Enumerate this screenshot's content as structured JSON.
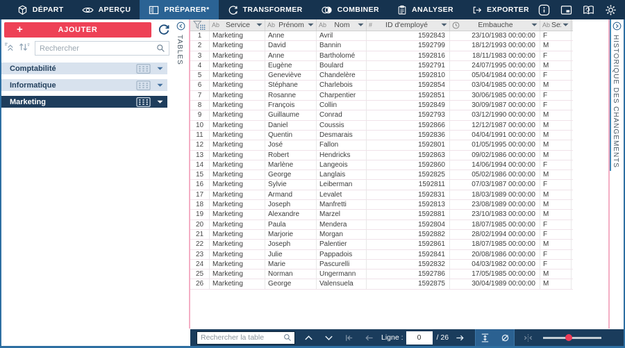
{
  "topbar": {
    "tabs": [
      {
        "label": "DÉPART",
        "icon": "cube-icon",
        "selected": false
      },
      {
        "label": "APERÇU",
        "icon": "eye-icon",
        "selected": false
      },
      {
        "label": "PRÉPARER*",
        "icon": "layout-icon",
        "selected": true
      },
      {
        "label": "TRANSFORMER",
        "icon": "transform-icon",
        "selected": false
      },
      {
        "label": "COMBINER",
        "icon": "combine-icon",
        "selected": false
      },
      {
        "label": "ANALYSER",
        "icon": "clipboard-icon",
        "selected": false
      },
      {
        "label": "EXPORTER",
        "icon": "export-icon",
        "selected": false
      }
    ],
    "right_icons": [
      "info-icon",
      "window-icon",
      "glossary-icon",
      "settings-icon"
    ]
  },
  "sidebar": {
    "add_button": "AJOUTER",
    "search_placeholder": "Rechercher",
    "items": [
      {
        "label": "Comptabilité",
        "selected": false
      },
      {
        "label": "Informatique",
        "selected": false
      },
      {
        "label": "Marketing",
        "selected": true
      }
    ]
  },
  "left_strip": {
    "label": "TABLES"
  },
  "right_strip": {
    "label": "HISTORIQUE DES CHANGEMENTS"
  },
  "table": {
    "columns": [
      {
        "type": "funnel",
        "label": ""
      },
      {
        "type": "Ab",
        "label": "Service"
      },
      {
        "type": "Ab",
        "label": "Prénom"
      },
      {
        "type": "Ab",
        "label": "Nom"
      },
      {
        "type": "#",
        "label": "ID d'employé"
      },
      {
        "type": "clock",
        "label": "Embauche"
      },
      {
        "type": "Ab",
        "label": "Sexe"
      }
    ],
    "rows": [
      [
        "1",
        "Marketing",
        "Anne",
        "Avril",
        "1592843",
        "23/10/1983 00:00:00",
        "F"
      ],
      [
        "2",
        "Marketing",
        "David",
        "Bannin",
        "1592799",
        "18/12/1993 00:00:00",
        "M"
      ],
      [
        "3",
        "Marketing",
        "Anne",
        "Bartholomé",
        "1592816",
        "18/11/1983 00:00:00",
        "F"
      ],
      [
        "4",
        "Marketing",
        "Eugène",
        "Boulard",
        "1592791",
        "24/07/1995 00:00:00",
        "M"
      ],
      [
        "5",
        "Marketing",
        "Geneviève",
        "Chandelère",
        "1592810",
        "05/04/1984 00:00:00",
        "F"
      ],
      [
        "6",
        "Marketing",
        "Stéphane",
        "Charlebois",
        "1592854",
        "03/04/1985 00:00:00",
        "M"
      ],
      [
        "7",
        "Marketing",
        "Rosanne",
        "Charpentier",
        "1592851",
        "30/06/1985 00:00:00",
        "F"
      ],
      [
        "8",
        "Marketing",
        "François",
        "Collin",
        "1592849",
        "30/09/1987 00:00:00",
        "F"
      ],
      [
        "9",
        "Marketing",
        "Guillaume",
        "Conrad",
        "1592793",
        "03/12/1990 00:00:00",
        "M"
      ],
      [
        "10",
        "Marketing",
        "Daniel",
        "Coussis",
        "1592866",
        "12/12/1987 00:00:00",
        "M"
      ],
      [
        "11",
        "Marketing",
        "Quentin",
        "Desmarais",
        "1592836",
        "04/04/1991 00:00:00",
        "M"
      ],
      [
        "12",
        "Marketing",
        "José",
        "Fallon",
        "1592801",
        "01/05/1995 00:00:00",
        "M"
      ],
      [
        "13",
        "Marketing",
        "Robert",
        "Hendricks",
        "1592863",
        "09/02/1986 00:00:00",
        "M"
      ],
      [
        "14",
        "Marketing",
        "Marlène",
        "Langeois",
        "1592860",
        "14/06/1994 00:00:00",
        "F"
      ],
      [
        "15",
        "Marketing",
        "George",
        "Langlais",
        "1592825",
        "05/02/1986 00:00:00",
        "M"
      ],
      [
        "16",
        "Marketing",
        "Sylvie",
        "Leiberman",
        "1592811",
        "07/03/1987 00:00:00",
        "F"
      ],
      [
        "17",
        "Marketing",
        "Armand",
        "Levalet",
        "1592831",
        "18/03/1989 00:00:00",
        "M"
      ],
      [
        "18",
        "Marketing",
        "Joseph",
        "Manfretti",
        "1592813",
        "23/08/1989 00:00:00",
        "M"
      ],
      [
        "19",
        "Marketing",
        "Alexandre",
        "Marzel",
        "1592881",
        "23/10/1983 00:00:00",
        "M"
      ],
      [
        "20",
        "Marketing",
        "Paula",
        "Mendera",
        "1592804",
        "18/07/1985 00:00:00",
        "F"
      ],
      [
        "21",
        "Marketing",
        "Marjorie",
        "Morgan",
        "1592882",
        "28/02/1994 00:00:00",
        "F"
      ],
      [
        "22",
        "Marketing",
        "Joseph",
        "Palentier",
        "1592861",
        "18/07/1985 00:00:00",
        "M"
      ],
      [
        "23",
        "Marketing",
        "Julie",
        "Pappadois",
        "1592841",
        "20/08/1986 00:00:00",
        "F"
      ],
      [
        "24",
        "Marketing",
        "Marie",
        "Pascurelli",
        "1592832",
        "04/03/1982 00:00:00",
        "F"
      ],
      [
        "25",
        "Marketing",
        "Norman",
        "Ungermann",
        "1592786",
        "17/05/1985 00:00:00",
        "M"
      ],
      [
        "26",
        "Marketing",
        "George",
        "Valensuela",
        "1592875",
        "30/04/1989 00:00:00",
        "M"
      ]
    ]
  },
  "bottombar": {
    "search_placeholder": "Rechercher la table",
    "row_label": "Ligne :",
    "row_value": "0",
    "row_total": "/ 26"
  },
  "colors": {
    "topbar": "#16334f",
    "selected_tab": "#2b6394",
    "accent_red": "#ee4156",
    "selected_item": "#1e3d5c",
    "pink_border": "#f4afc5",
    "blue_border": "#4288b6",
    "slider_handle": "#ee3a57"
  }
}
